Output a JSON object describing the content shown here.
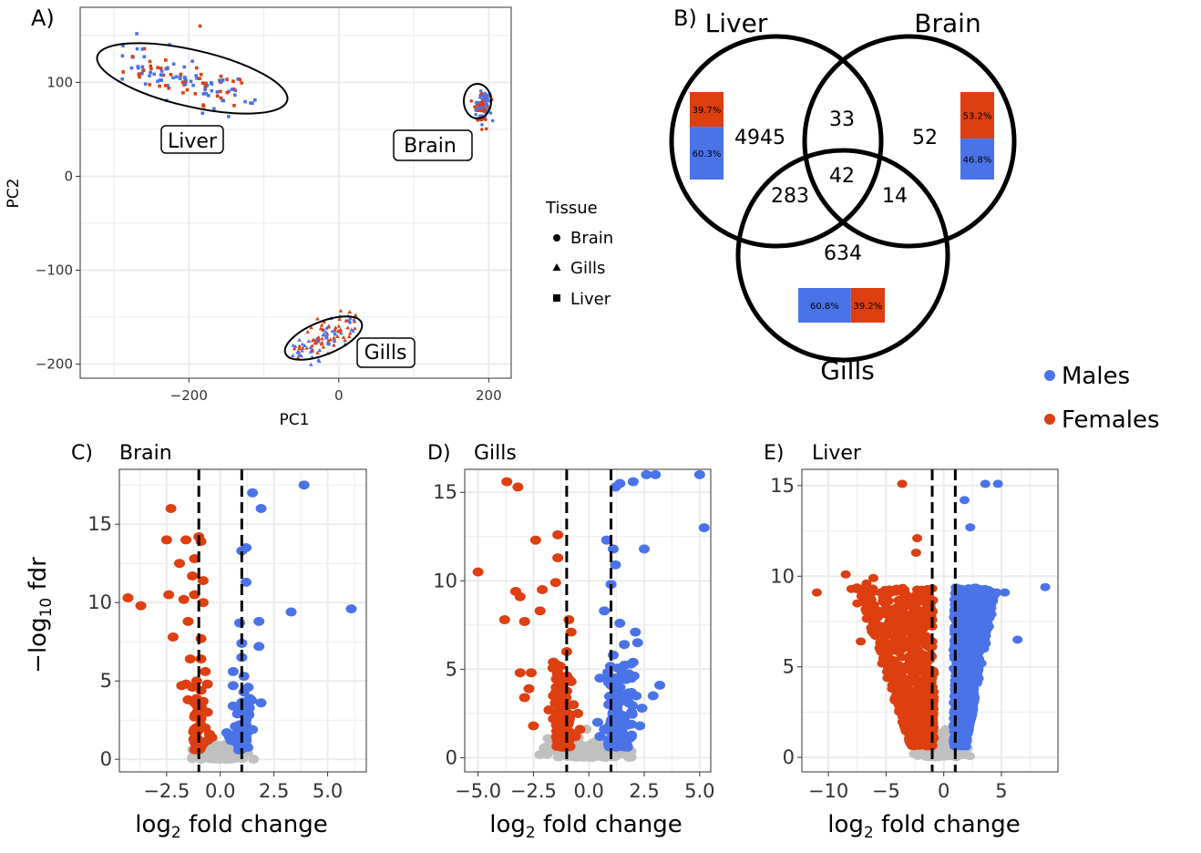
{
  "colors": {
    "males": "#4a73e8",
    "females": "#dd3f10",
    "nonsig": "#c0c0c0",
    "grid": "#ebebeb",
    "ink": "#000000"
  },
  "panelA": {
    "letter": "A)",
    "xlabel": "PC1",
    "ylabel": "PC2",
    "xticks": [
      -200,
      0,
      200
    ],
    "xtick_labels": [
      "−200",
      "0",
      "200"
    ],
    "yticks": [
      100,
      0,
      -100,
      -200
    ],
    "ytick_labels": [
      "100",
      "0",
      "−100",
      "−200"
    ],
    "cluster_labels": [
      "Liver",
      "Brain",
      "Gills"
    ],
    "legend_title": "Tissue",
    "legend_items": [
      "Brain",
      "Gills",
      "Liver"
    ]
  },
  "panelB": {
    "letter": "B)",
    "set_labels": [
      "Liver",
      "Brain",
      "Gills"
    ],
    "counts": {
      "liver_only": "4945",
      "liver_brain": "33",
      "brain_only": "52",
      "center": "42",
      "liver_gills": "283",
      "brain_gills": "14",
      "gills_only": "634"
    },
    "liver_bar": {
      "females": "39.7%",
      "males": "60.3%"
    },
    "brain_bar": {
      "females": "53.2%",
      "males": "46.8%"
    },
    "gills_bar": {
      "males": "60.8%",
      "females": "39.2%"
    }
  },
  "legend": {
    "males": "Males",
    "females": "Females"
  },
  "chart_data": [
    {
      "type": "scatter",
      "panel": "A",
      "xlabel": "PC1",
      "ylabel": "PC2",
      "xlim": [
        -345,
        230
      ],
      "ylim": [
        -215,
        180
      ],
      "grid": true,
      "legend_title": "Tissue",
      "series": [
        {
          "name": "Liver",
          "marker": "square",
          "x_center": -200,
          "y_center": 102,
          "approx_points": 120
        },
        {
          "name": "Brain",
          "marker": "circle",
          "x_center": 192,
          "y_center": 76,
          "approx_points": 100
        },
        {
          "name": "Gills",
          "marker": "triangle",
          "x_center": -18,
          "y_center": -172,
          "approx_points": 110
        }
      ]
    },
    {
      "type": "venn",
      "panel": "B",
      "sets": [
        "Liver",
        "Brain",
        "Gills"
      ],
      "regions": {
        "Liver": 4945,
        "Brain": 52,
        "Gills": 634,
        "Liver&Brain": 33,
        "Liver&Gills": 283,
        "Brain&Gills": 14,
        "Liver&Brain&Gills": 42
      },
      "sex_proportions": {
        "Liver": {
          "Females": 39.7,
          "Males": 60.3
        },
        "Brain": {
          "Females": 53.2,
          "Males": 46.8
        },
        "Gills": {
          "Males": 60.8,
          "Females": 39.2
        }
      }
    },
    {
      "type": "scatter",
      "panel": "C",
      "title": "Brain",
      "xlabel": "log2 fold change",
      "ylabel": "-log10 fdr",
      "xlim": [
        -4.7,
        6.8
      ],
      "ylim": [
        -0.8,
        18.5
      ],
      "xticks": [
        -2.5,
        0.0,
        2.5,
        5.0
      ],
      "yticks": [
        0,
        5,
        10,
        15
      ],
      "thresholds": [
        -1,
        1
      ],
      "females": [
        [
          -4.3,
          10.3
        ],
        [
          -3.7,
          9.8
        ],
        [
          -2.3,
          16
        ],
        [
          -2.5,
          14
        ],
        [
          -2.4,
          10.5
        ],
        [
          -2.2,
          7.8
        ],
        [
          -1.9,
          12.5
        ],
        [
          -1.7,
          10.2
        ],
        [
          -1.6,
          14
        ],
        [
          -1.5,
          8.8
        ],
        [
          -1.4,
          6.4
        ],
        [
          -1.3,
          11.7
        ],
        [
          -1.2,
          10.5
        ],
        [
          -1.6,
          4.8
        ],
        [
          -1.8,
          4.7
        ],
        [
          -1.2,
          12.8
        ],
        [
          -1.0,
          14.2
        ],
        [
          -0.9,
          13.9
        ],
        [
          -0.8,
          11.4
        ],
        [
          -0.8,
          10
        ],
        [
          -0.9,
          7.7
        ],
        [
          -0.9,
          6.4
        ],
        [
          -0.7,
          5.6
        ],
        [
          -0.6,
          4.8
        ],
        [
          -0.9,
          4.4
        ],
        [
          -1.1,
          5.0
        ],
        [
          -1.3,
          4.6
        ],
        [
          -1.5,
          3.8
        ],
        [
          -0.8,
          3.7
        ],
        [
          -0.6,
          3.0
        ],
        [
          -0.9,
          2.6
        ],
        [
          -0.7,
          2.0
        ],
        [
          -0.5,
          1.6
        ],
        [
          -1.1,
          1.3
        ],
        [
          -0.8,
          1.0
        ],
        [
          -0.6,
          1.2
        ],
        [
          -0.4,
          1.4
        ],
        [
          -1.2,
          2.7
        ]
      ],
      "males": [
        [
          3.9,
          17.5
        ],
        [
          6.1,
          9.6
        ],
        [
          3.3,
          9.4
        ],
        [
          1.9,
          16
        ],
        [
          1.5,
          17
        ],
        [
          1.2,
          13.5
        ],
        [
          1.0,
          13.3
        ],
        [
          1.2,
          11.3
        ],
        [
          0.9,
          8.7
        ],
        [
          1.0,
          7.4
        ],
        [
          1.0,
          6.5
        ],
        [
          1.8,
          8.8
        ],
        [
          1.8,
          7.2
        ],
        [
          1.3,
          4.6
        ],
        [
          1.1,
          5.3
        ],
        [
          0.6,
          4.7
        ],
        [
          0.6,
          5.6
        ],
        [
          1.0,
          3.6
        ],
        [
          0.8,
          2.9
        ],
        [
          0.9,
          2.2
        ],
        [
          1.2,
          2.5
        ],
        [
          1.5,
          1.9
        ],
        [
          1.2,
          1.4
        ],
        [
          1.9,
          3.6
        ],
        [
          0.7,
          1.6
        ],
        [
          0.5,
          1.2
        ],
        [
          0.8,
          1.0
        ],
        [
          0.4,
          1.5
        ],
        [
          0.3,
          1.7
        ],
        [
          0.6,
          3.4
        ],
        [
          1.1,
          4.3
        ],
        [
          0.7,
          2.1
        ]
      ]
    },
    {
      "type": "scatter",
      "panel": "D",
      "title": "Gills",
      "xlabel": "log2 fold change",
      "ylabel": "",
      "xlim": [
        -5.6,
        5.5
      ],
      "ylim": [
        -0.8,
        16.3
      ],
      "xticks": [
        -5.0,
        -2.5,
        0.0,
        2.5,
        5.0
      ],
      "yticks": [
        0,
        5,
        10,
        15
      ],
      "thresholds": [
        -1,
        1
      ],
      "females": [
        [
          -5.0,
          10.5
        ],
        [
          -3.7,
          15.6
        ],
        [
          -3.2,
          15.3
        ],
        [
          -2.4,
          12.3
        ],
        [
          -1.4,
          12.6
        ],
        [
          -1.4,
          11.3
        ],
        [
          -1.5,
          9.9
        ],
        [
          -2.1,
          9.5
        ],
        [
          -2.2,
          8.3
        ],
        [
          -3.3,
          9.4
        ],
        [
          -3.1,
          9.1
        ],
        [
          -3.8,
          7.8
        ],
        [
          -2.9,
          7.7
        ],
        [
          -0.9,
          7.8
        ],
        [
          -0.8,
          7.1
        ],
        [
          -1.0,
          6.0
        ],
        [
          -1.6,
          5.4
        ],
        [
          -2.6,
          4.8
        ],
        [
          -3.1,
          4.8
        ],
        [
          -2.7,
          3.9
        ],
        [
          -1.6,
          3.5
        ],
        [
          -1.1,
          3.6
        ],
        [
          -0.7,
          3.0
        ],
        [
          -1.8,
          2.7
        ],
        [
          -0.9,
          2.1
        ],
        [
          -1.4,
          1.9
        ],
        [
          -2.5,
          1.8
        ],
        [
          -0.6,
          1.2
        ],
        [
          -1.1,
          1.3
        ],
        [
          -0.8,
          4.3
        ],
        [
          -0.5,
          2.5
        ],
        [
          -1.3,
          4.6
        ],
        [
          -0.4,
          1.6
        ],
        [
          -2.9,
          3.4
        ],
        [
          -1.6,
          2.2
        ]
      ],
      "males": [
        [
          2.6,
          16
        ],
        [
          3.0,
          16
        ],
        [
          5.0,
          16
        ],
        [
          2.0,
          15.6
        ],
        [
          1.2,
          15.3
        ],
        [
          1.4,
          15.5
        ],
        [
          2.5,
          11.8
        ],
        [
          0.8,
          12.3
        ],
        [
          1.1,
          11.8
        ],
        [
          1.2,
          10.9
        ],
        [
          1.0,
          9.8
        ],
        [
          0.7,
          8.3
        ],
        [
          1.4,
          7.6
        ],
        [
          2.1,
          7.1
        ],
        [
          2.2,
          6.5
        ],
        [
          1.6,
          6.4
        ],
        [
          1.1,
          5.8
        ],
        [
          0.5,
          4.5
        ],
        [
          1.5,
          4.8
        ],
        [
          2.9,
          3.5
        ],
        [
          3.2,
          4.1
        ],
        [
          2.4,
          2.8
        ],
        [
          1.8,
          3.1
        ],
        [
          0.9,
          3.0
        ],
        [
          1.6,
          2.2
        ],
        [
          2.3,
          1.8
        ],
        [
          0.7,
          1.6
        ],
        [
          1.2,
          1.5
        ],
        [
          0.5,
          1.2
        ],
        [
          0.4,
          2.0
        ],
        [
          0.9,
          1.0
        ],
        [
          1.3,
          2.6
        ],
        [
          5.2,
          13.0
        ],
        [
          1.9,
          5.3
        ],
        [
          1.0,
          4.1
        ]
      ]
    },
    {
      "type": "scatter",
      "panel": "E",
      "title": "Liver",
      "xlabel": "log2 fold change",
      "ylabel": "",
      "xlim": [
        -12.3,
        9.9
      ],
      "ylim": [
        -0.8,
        15.9
      ],
      "xticks": [
        -10,
        -5,
        0,
        5
      ],
      "yticks": [
        0,
        5,
        10,
        15
      ],
      "thresholds": [
        -1,
        1
      ],
      "females": [
        [
          -11.0,
          9.1
        ],
        [
          -8.5,
          10.1
        ],
        [
          -8.0,
          9.3
        ],
        [
          -7.5,
          8.5
        ],
        [
          -6.7,
          9.6
        ],
        [
          -6.1,
          9.9
        ],
        [
          -3.6,
          15.1
        ],
        [
          -2.3,
          12.1
        ],
        [
          -2.4,
          11.3
        ],
        [
          -4.8,
          7.4
        ],
        [
          -7.2,
          6.4
        ]
      ],
      "males": [
        [
          3.6,
          15.1
        ],
        [
          4.7,
          15.1
        ],
        [
          1.8,
          14.2
        ],
        [
          2.3,
          12.7
        ],
        [
          8.8,
          9.4
        ],
        [
          4.6,
          9.1
        ],
        [
          5.3,
          9.1
        ],
        [
          3.6,
          8.8
        ],
        [
          6.4,
          6.5
        ]
      ]
    }
  ]
}
